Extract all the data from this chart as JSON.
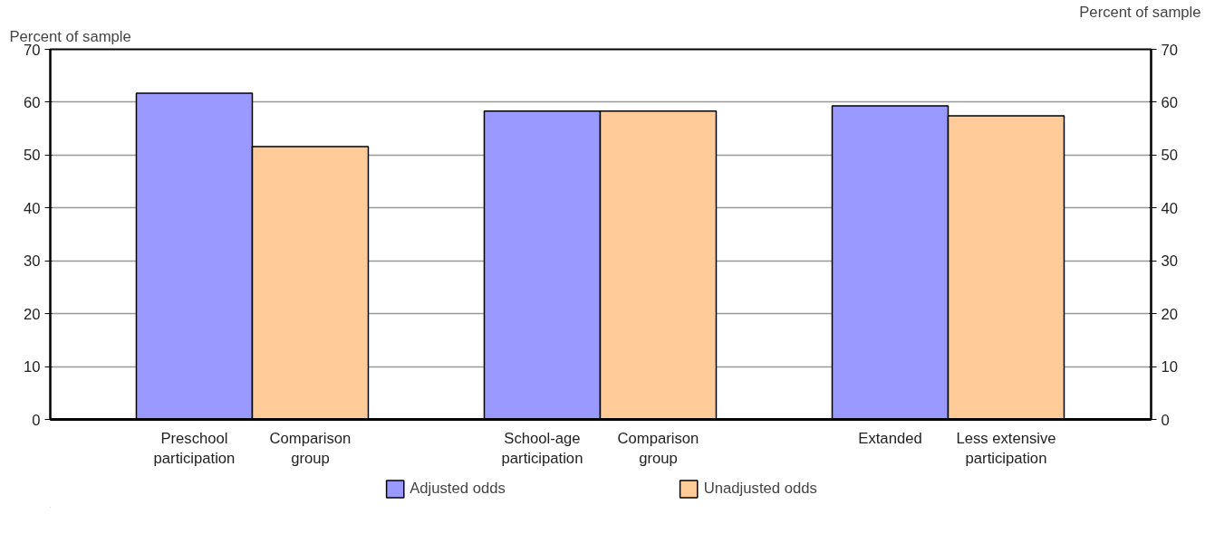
{
  "chart_data": {
    "type": "bar",
    "categories": [
      "Preschool participation",
      "Comparison group",
      "School-age participation",
      "Comparison group",
      "Extanded",
      "Less extensive participation"
    ],
    "series": [
      {
        "name": "Adjusted odds",
        "color": "#9999ff",
        "values": [
          61.7,
          null,
          58.3,
          null,
          59.3,
          null
        ]
      },
      {
        "name": "Unadjusted odds",
        "color": "#ffcc99",
        "values": [
          null,
          51.6,
          null,
          58.3,
          null,
          57.4
        ]
      }
    ],
    "ylabel": "Percent of sample",
    "y2label": "Percent of sample",
    "ylim": [
      0,
      70
    ],
    "yticks": [
      0,
      10,
      20,
      30,
      40,
      50,
      60,
      70
    ],
    "y2lim": [
      0,
      70
    ],
    "y2ticks": [
      0,
      10,
      20,
      30,
      40,
      50,
      60,
      70
    ],
    "grid": "y",
    "legend": "bottom"
  }
}
